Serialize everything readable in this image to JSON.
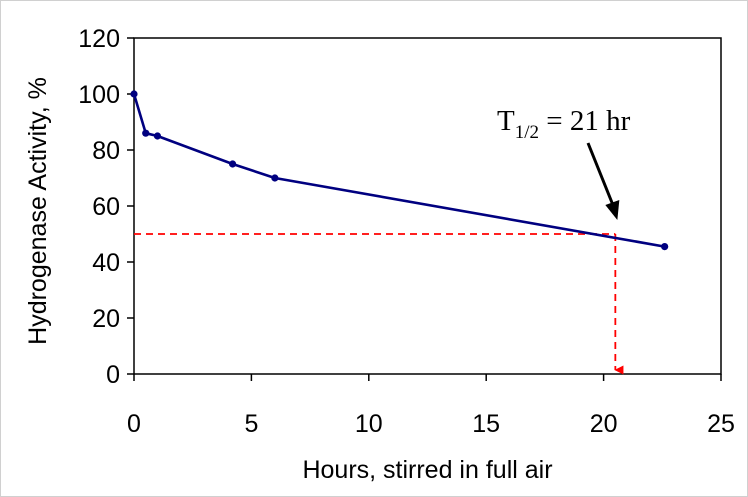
{
  "chart_data": {
    "type": "line",
    "title": "",
    "xlabel": "Hours, stirred in full air",
    "ylabel": "Hydrogenase Activity, %",
    "xlim": [
      0,
      25
    ],
    "ylim": [
      0,
      120
    ],
    "x_ticks": [
      "0",
      "5",
      "10",
      "15",
      "20",
      "25"
    ],
    "y_ticks": [
      "0",
      "20",
      "40",
      "60",
      "80",
      "100",
      "120"
    ],
    "grid": false,
    "legend": "none",
    "series": [
      {
        "color": "#000080",
        "x": [
          0,
          0.5,
          1,
          4.2,
          6,
          22.6
        ],
        "y": [
          100,
          86,
          85,
          75,
          70,
          45.5
        ]
      }
    ],
    "reference_lines": {
      "color": "#ff0000",
      "style": "dashed",
      "half_activity_y": 50,
      "half_life_x": 20.5
    },
    "annotation": {
      "text_main": "T",
      "text_sub": "1/2",
      "text_rest": " = 21 hr",
      "arrow_target": {
        "x": 20.5,
        "y": 50
      }
    }
  }
}
